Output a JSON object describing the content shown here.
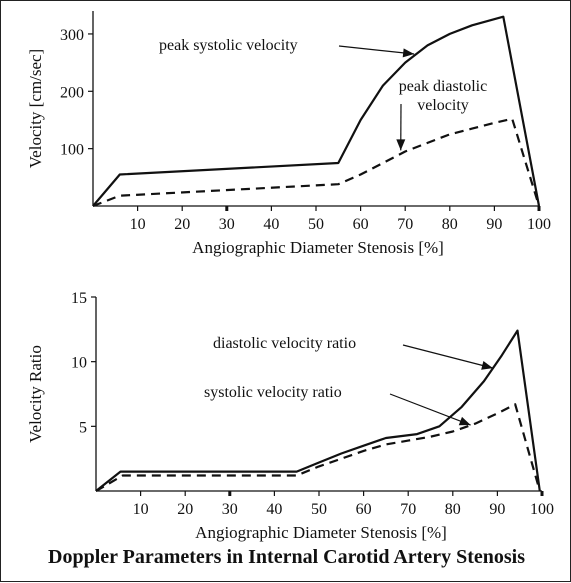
{
  "figure_caption": "Doppler Parameters in Internal Carotid Artery Stenosis",
  "colors": {
    "line": "#111111",
    "background": "#ffffff"
  },
  "chart_data": [
    {
      "type": "line",
      "xlabel": "Angiographic Diameter Stenosis [%]",
      "ylabel": "Velocity [cm/sec]",
      "xlim": [
        0,
        100
      ],
      "ylim": [
        0,
        340
      ],
      "xticks": [
        10,
        20,
        30,
        40,
        50,
        60,
        70,
        80,
        90,
        100
      ],
      "yticks": [
        100,
        200,
        300
      ],
      "grid": false,
      "series": [
        {
          "name": "peak systolic velocity",
          "style": "solid",
          "x": [
            0,
            6,
            55,
            60,
            65,
            70,
            75,
            80,
            85,
            92,
            100
          ],
          "y": [
            0,
            55,
            75,
            150,
            210,
            250,
            280,
            300,
            315,
            330,
            0
          ]
        },
        {
          "name": "peak diastolic velocity",
          "style": "dashed",
          "x": [
            0,
            6,
            55,
            60,
            65,
            70,
            75,
            80,
            85,
            90,
            94,
            100
          ],
          "y": [
            0,
            18,
            38,
            55,
            75,
            95,
            110,
            125,
            135,
            145,
            152,
            0
          ]
        }
      ],
      "annotations": [
        {
          "text": "peak systolic velocity",
          "arrow_to": [
            72,
            265
          ]
        },
        {
          "text": "peak diastolic velocity",
          "arrow_to": [
            69,
            97
          ]
        }
      ]
    },
    {
      "type": "line",
      "xlabel": "Angiographic Diameter Stenosis [%]",
      "ylabel": "Velocity Ratio",
      "xlim": [
        0,
        100
      ],
      "ylim": [
        0,
        15
      ],
      "xticks": [
        10,
        20,
        30,
        40,
        50,
        60,
        70,
        80,
        90,
        100
      ],
      "yticks": [
        5,
        10,
        15
      ],
      "grid": false,
      "series": [
        {
          "name": "diastolic velocity ratio",
          "style": "solid",
          "x": [
            0,
            5.5,
            45,
            50,
            55,
            60,
            65,
            72,
            77,
            82,
            87,
            91,
            94.5,
            99.5
          ],
          "y": [
            0,
            1.5,
            1.5,
            2.2,
            2.9,
            3.5,
            4.1,
            4.4,
            5.0,
            6.5,
            8.5,
            10.5,
            12.4,
            0
          ]
        },
        {
          "name": "systolic velocity ratio",
          "style": "dashed",
          "x": [
            0,
            6,
            45,
            50,
            55,
            60,
            65,
            70,
            75,
            80,
            85,
            90,
            94,
            99.5
          ],
          "y": [
            0,
            1.2,
            1.2,
            1.9,
            2.5,
            3.1,
            3.6,
            3.9,
            4.2,
            4.6,
            5.2,
            6.0,
            6.7,
            0
          ]
        }
      ],
      "annotations": [
        {
          "text": "diastolic velocity ratio",
          "arrow_to": [
            89,
            9.5
          ]
        },
        {
          "text": "systolic velocity ratio",
          "arrow_to": [
            84,
            5.1
          ]
        }
      ]
    }
  ]
}
